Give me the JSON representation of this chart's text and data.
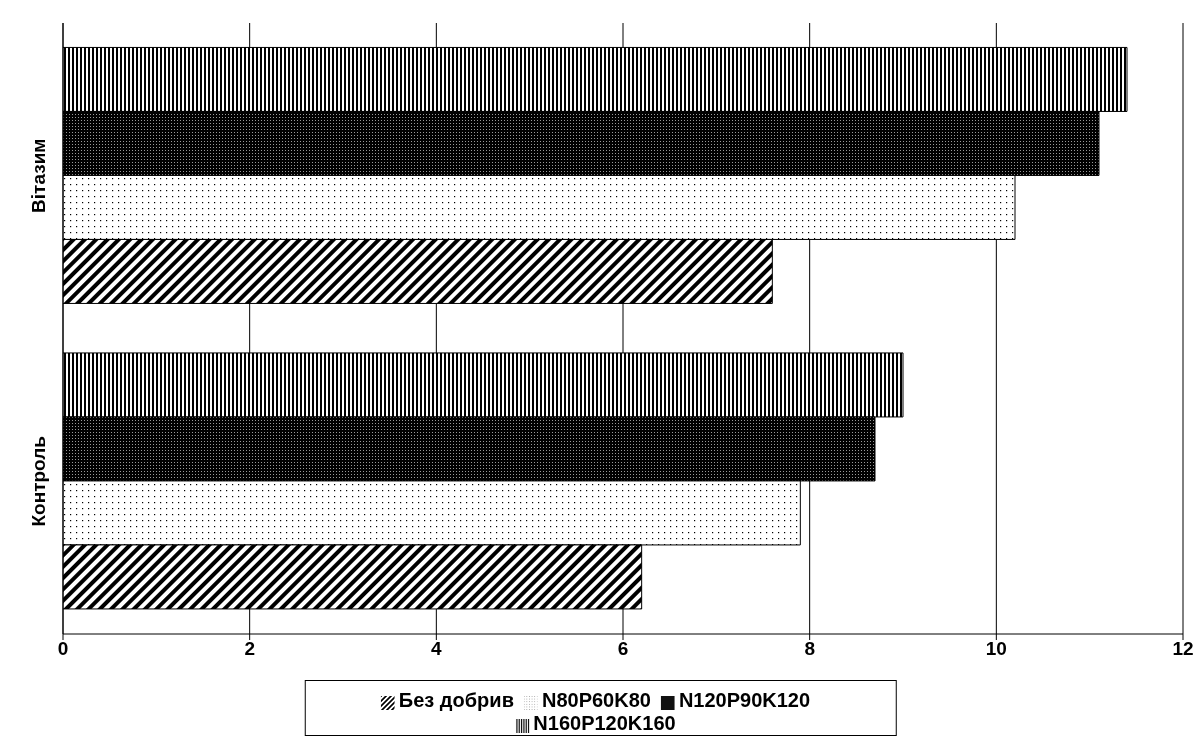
{
  "chart_data": {
    "type": "bar",
    "orientation": "horizontal",
    "categories": [
      "Вітазим",
      "Контроль"
    ],
    "series": [
      {
        "name": "Без добрив",
        "color": "#000000",
        "values": [
          7.6,
          6.2
        ]
      },
      {
        "name": "N80P60K80",
        "color": "#000000",
        "values": [
          10.2,
          7.9
        ]
      },
      {
        "name": "N120P90K120",
        "color": "#000000",
        "values": [
          11.1,
          8.7
        ]
      },
      {
        "name": "N160P120K160",
        "color": "#000000",
        "values": [
          11.4,
          9.0
        ]
      }
    ],
    "xlim": [
      0,
      12
    ],
    "xticks": [
      0,
      2,
      4,
      6,
      8,
      10,
      12
    ],
    "grid": "x",
    "legend": "bottom"
  }
}
